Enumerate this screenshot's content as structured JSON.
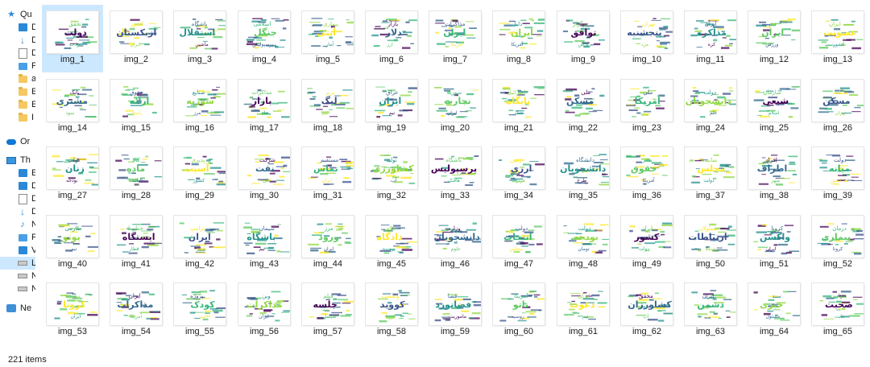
{
  "nav": {
    "items": [
      {
        "label": "Qu",
        "icon": "star-icon"
      },
      {
        "label": "D",
        "icon": "desktop-folder-icon"
      },
      {
        "label": "D",
        "icon": "downloads-arrow-icon"
      },
      {
        "label": "D",
        "icon": "documents-icon"
      },
      {
        "label": "P",
        "icon": "pictures-icon"
      },
      {
        "label": "a",
        "icon": "folder-icon"
      },
      {
        "label": "E",
        "icon": "folder-icon"
      },
      {
        "label": "E",
        "icon": "folder-icon"
      },
      {
        "label": "I",
        "icon": "folder-icon"
      },
      {
        "label": "Or",
        "icon": "onedrive-cloud-icon"
      },
      {
        "label": "Th",
        "icon": "this-pc-icon"
      },
      {
        "label": "E",
        "icon": "3d-objects-icon"
      },
      {
        "label": "D",
        "icon": "desktop-folder-icon"
      },
      {
        "label": "D",
        "icon": "documents-icon"
      },
      {
        "label": "D",
        "icon": "downloads-arrow-icon"
      },
      {
        "label": "N",
        "icon": "music-note-icon"
      },
      {
        "label": "P",
        "icon": "pictures-icon"
      },
      {
        "label": "V",
        "icon": "videos-icon"
      },
      {
        "label": "L",
        "icon": "local-disk-icon"
      },
      {
        "label": "N",
        "icon": "drive-icon"
      },
      {
        "label": "N",
        "icon": "drive-icon"
      },
      {
        "label": "Ne",
        "icon": "network-icon"
      }
    ]
  },
  "files": [
    {
      "name": "img_1",
      "words": [
        "دولت",
        "تحقق",
        "بودجه"
      ]
    },
    {
      "name": "img_2",
      "words": [
        "ازبکستان",
        "کشور",
        "ایران"
      ]
    },
    {
      "name": "img_3",
      "words": [
        "استقلال",
        "باشگاه",
        "ماشین"
      ]
    },
    {
      "name": "img_4",
      "words": [
        "جنگل",
        "اسلامی",
        "پرسپولیس"
      ]
    },
    {
      "name": "img_5",
      "words": [
        "آنتی",
        "بیماری",
        "آمار"
      ]
    },
    {
      "name": "img_6",
      "words": [
        "دلار",
        "بازار",
        "ارز"
      ]
    },
    {
      "name": "img_7",
      "words": [
        "ایران",
        "مذاکرات",
        "آمریکا"
      ]
    },
    {
      "name": "img_8",
      "words": [
        "ایران",
        "دلیل",
        "آمریکا"
      ]
    },
    {
      "name": "img_9",
      "words": [
        "توافق",
        "برگزار",
        "روزش"
      ]
    },
    {
      "name": "img_10",
      "words": [
        "پنجشنبه",
        "تهران",
        "مرد"
      ]
    },
    {
      "name": "img_11",
      "words": [
        "مذاکره",
        "ایران",
        "کره"
      ]
    },
    {
      "name": "img_12",
      "words": [
        "ایران",
        "تیم",
        "ورزش"
      ]
    },
    {
      "name": "img_13",
      "words": [
        "عضویت",
        "ایران",
        "کشور"
      ]
    },
    {
      "name": "img_14",
      "words": [
        "مشتری",
        "بانک",
        "سود"
      ]
    },
    {
      "name": "img_15",
      "words": [
        "ارائه",
        "حقوق",
        "پاسخ"
      ]
    },
    {
      "name": "img_16",
      "words": [
        "سوریه",
        "صنایع",
        "مرز"
      ]
    },
    {
      "name": "img_17",
      "words": [
        "بازار",
        "مذاکرات",
        "ماه"
      ]
    },
    {
      "name": "img_18",
      "words": [
        "لیگ",
        "برتر",
        "تیم"
      ]
    },
    {
      "name": "img_19",
      "words": [
        "ایران",
        "عراق",
        "تیم"
      ]
    },
    {
      "name": "img_20",
      "words": [
        "تجارت",
        "سوریه",
        "ایران"
      ]
    },
    {
      "name": "img_21",
      "words": [
        "پایگاه",
        "اسرائیل",
        "جنگ"
      ]
    },
    {
      "name": "img_22",
      "words": [
        "مسکن",
        "ملی",
        "نفت"
      ]
    },
    {
      "name": "img_23",
      "words": [
        "آمریکا",
        "ملی",
        "نیرو"
      ]
    },
    {
      "name": "img_24",
      "words": [
        "دانشجویان",
        "دولت",
        "علم"
      ]
    },
    {
      "name": "img_25",
      "words": [
        "شیعی",
        "سازمان",
        "اسلام"
      ]
    },
    {
      "name": "img_26",
      "words": [
        "مسکن",
        "منطقه",
        "تهران"
      ]
    },
    {
      "name": "img_27",
      "words": [
        "زنان",
        "دولت",
        "بودجه"
      ]
    },
    {
      "name": "img_28",
      "words": [
        "ماده",
        "کالا",
        "مالیات"
      ]
    },
    {
      "name": "img_29",
      "words": [
        "آسیب",
        "پذیری",
        "کشور"
      ]
    },
    {
      "name": "img_30",
      "words": [
        "نفت",
        "شرکت",
        "ملی"
      ]
    },
    {
      "name": "img_31",
      "words": [
        "تماس",
        "مستقیم",
        "ایران"
      ]
    },
    {
      "name": "img_32",
      "words": [
        "کشاورزی",
        "تولید",
        "آب"
      ]
    },
    {
      "name": "img_33",
      "words": [
        "پرسپولیس",
        "باشگاه",
        "هافبک"
      ]
    },
    {
      "name": "img_34",
      "words": [
        "ارزی",
        "زمین",
        "هزار"
      ]
    },
    {
      "name": "img_35",
      "words": [
        "دانشجویان",
        "دانشگاه",
        "طرح"
      ]
    },
    {
      "name": "img_36",
      "words": [
        "حقوق",
        "بشر",
        "آمریکا"
      ]
    },
    {
      "name": "img_37",
      "words": [
        "مجلس",
        "نماینده",
        "دولت"
      ]
    },
    {
      "name": "img_38",
      "words": [
        "اطراف",
        "افراد",
        "شهر"
      ]
    },
    {
      "name": "img_39",
      "words": [
        "میانه",
        "دولت",
        "کشور"
      ]
    },
    {
      "name": "img_40",
      "words": [
        "پوتو",
        "طارمی",
        "تیم"
      ]
    },
    {
      "name": "img_41",
      "words": [
        "ایستگاه",
        "خطوط",
        "قطار"
      ]
    },
    {
      "name": "img_42",
      "words": [
        "ایران",
        "ترامپ",
        "شهر"
      ]
    },
    {
      "name": "img_43",
      "words": [
        "باشگاه",
        "سیمان",
        "تیم"
      ]
    },
    {
      "name": "img_44",
      "words": [
        "ورود",
        "مرز",
        "ایران"
      ]
    },
    {
      "name": "img_45",
      "words": [
        "دادگاه",
        "حکم",
        "پرونده"
      ]
    },
    {
      "name": "img_46",
      "words": [
        "دانشجویان",
        "وزارت",
        "علوم"
      ]
    },
    {
      "name": "img_47",
      "words": [
        "انتخاب",
        "دولت",
        "مجلس"
      ]
    },
    {
      "name": "img_48",
      "words": [
        "بودجه",
        "دولت",
        "تومان"
      ]
    },
    {
      "name": "img_49",
      "words": [
        "کشور",
        "ایران",
        "دولت"
      ]
    },
    {
      "name": "img_50",
      "words": [
        "ارتباطات",
        "مسئولان",
        "شبکه"
      ]
    },
    {
      "name": "img_51",
      "words": [
        "واکسن",
        "کرونا",
        "ایران"
      ]
    },
    {
      "name": "img_52",
      "words": [
        "بیماری",
        "درمان",
        "کرونا"
      ]
    },
    {
      "name": "img_53",
      "words": [
        "کرونا",
        "سوریه",
        "ایران"
      ]
    },
    {
      "name": "img_54",
      "words": [
        "مذاکرات",
        "ایران",
        "آمریکا"
      ]
    },
    {
      "name": "img_55",
      "words": [
        "کودک",
        "پروژه",
        "تیم"
      ]
    },
    {
      "name": "img_56",
      "words": [
        "مذاکرات",
        "وین",
        "ایران"
      ]
    },
    {
      "name": "img_57",
      "words": [
        "جلسه",
        "فیلم",
        "سینما"
      ]
    },
    {
      "name": "img_58",
      "words": [
        "کووید",
        "وضعیت",
        "کرونا"
      ]
    },
    {
      "name": "img_59",
      "words": [
        "فضانورد",
        "فضا",
        "ماموریت"
      ]
    },
    {
      "name": "img_60",
      "words": [
        "ناتو",
        "آمریکا",
        "روسیه"
      ]
    },
    {
      "name": "img_61",
      "words": [
        "دعوت",
        "ایران",
        "تیم"
      ]
    },
    {
      "name": "img_62",
      "words": [
        "کشاورزان",
        "محقق",
        "آب"
      ]
    },
    {
      "name": "img_63",
      "words": [
        "دشمن",
        "ایران",
        "مقامات"
      ]
    },
    {
      "name": "img_64",
      "words": [
        "خبری",
        "سند",
        "مسئول"
      ]
    },
    {
      "name": "img_65",
      "words": [
        "صحبت",
        "شهادت",
        "هایت"
      ]
    }
  ],
  "status": {
    "item_count": "221 items"
  },
  "colors": {
    "selection": "#cce8ff",
    "word_palette": [
      "#440154",
      "#3b528b",
      "#21918c",
      "#5ec962",
      "#fde725",
      "#31688e",
      "#35b779",
      "#90d743"
    ]
  }
}
